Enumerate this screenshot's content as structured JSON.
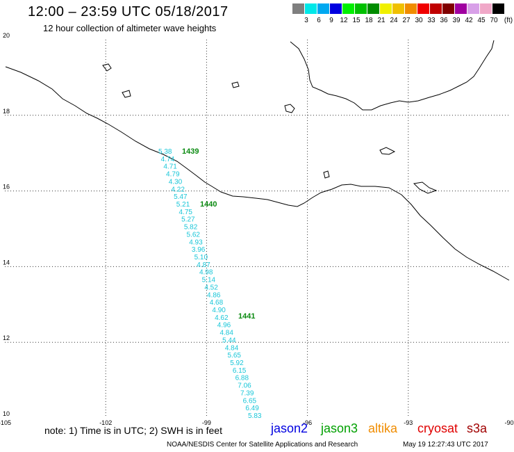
{
  "header": {
    "title": "12:00 – 23:59 UTC 05/18/2017",
    "subtitle": "12 hour collection of altimeter wave heights"
  },
  "legend": {
    "unit": "(ft)",
    "bins": [
      {
        "label": "3",
        "color": "#7f7f7f"
      },
      {
        "label": "6",
        "color": "#00e8e8"
      },
      {
        "label": "9",
        "color": "#00a8f0"
      },
      {
        "label": "12",
        "color": "#0000e0"
      },
      {
        "label": "15",
        "color": "#00f000"
      },
      {
        "label": "18",
        "color": "#00c000"
      },
      {
        "label": "21",
        "color": "#008c00"
      },
      {
        "label": "24",
        "color": "#f0f000"
      },
      {
        "label": "27",
        "color": "#f0c000"
      },
      {
        "label": "30",
        "color": "#f08c00"
      },
      {
        "label": "33",
        "color": "#f00000"
      },
      {
        "label": "36",
        "color": "#c00000"
      },
      {
        "label": "39",
        "color": "#800000"
      },
      {
        "label": "42",
        "color": "#a000a0"
      },
      {
        "label": "45",
        "color": "#d8a0e8"
      },
      {
        "label": "70",
        "color": "#f0a8c8"
      },
      {
        "label": "",
        "color": "#000000"
      }
    ]
  },
  "map": {
    "lon_range": [
      -105,
      -90
    ],
    "lat_range": [
      10,
      20
    ],
    "lon_ticks": [
      "-105",
      "-102",
      "-99",
      "-96",
      "-93",
      "-90"
    ],
    "lat_ticks": [
      "10",
      "12",
      "14",
      "16",
      "18",
      "20"
    ],
    "grid": "dotted"
  },
  "track": {
    "satellite": "jason3",
    "swh_color": "#18c6d8",
    "time_color": "#0a8a10",
    "swh_labels": [
      "5.38",
      "4.74",
      "4.71",
      "4.79",
      "4.30",
      "4.22",
      "5.47",
      "5.21",
      "4.75",
      "5.27",
      "5.82",
      "5.62",
      "4.93",
      "3.96",
      "5.10",
      "4.87",
      "4.98",
      "5.14",
      "4.52",
      "4.86",
      "4.68",
      "4.90",
      "4.62",
      "4.96",
      "4.84",
      "5.44",
      "4.84",
      "5.65",
      "5.92",
      "6.15",
      "6.88",
      "7.06",
      "7.39",
      "6.65",
      "6.49",
      "5.83"
    ],
    "time_labels": [
      "1439",
      "1440",
      "1441"
    ]
  },
  "footer": {
    "note": "note: 1) Time is in UTC; 2) SWH is in feet",
    "satellites": [
      {
        "name": "jason2",
        "color": "#0000e0"
      },
      {
        "name": "jason3",
        "color": "#00a000"
      },
      {
        "name": "altika",
        "color": "#f08c00"
      },
      {
        "name": "cryosat",
        "color": "#e00000"
      },
      {
        "name": "s3a",
        "color": "#a00000"
      }
    ],
    "credit": "NOAA/NESDIS Center for Satellite Applications and Research",
    "timestamp": "May 19 12:27:43 UTC 2017"
  }
}
